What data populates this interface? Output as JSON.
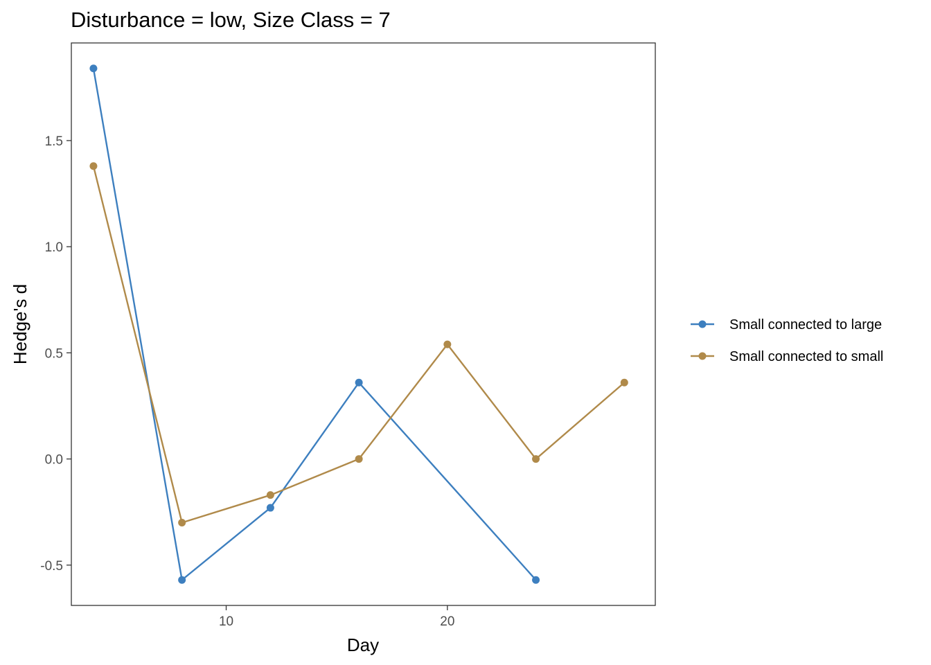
{
  "chart_data": {
    "type": "line",
    "title": "Disturbance = low, Size Class = 7",
    "xlabel": "Day",
    "ylabel": "Hedge's d",
    "xlim": [
      3.0,
      29.4
    ],
    "ylim": [
      -0.69,
      1.96
    ],
    "x_ticks": [
      10,
      20
    ],
    "x_tick_labels": [
      "10",
      "20"
    ],
    "y_ticks": [
      -0.5,
      0.0,
      0.5,
      1.0,
      1.5
    ],
    "y_tick_labels": [
      "-0.5",
      "0.0",
      "0.5",
      "1.0",
      "1.5"
    ],
    "grid": false,
    "legend_position": "right",
    "series": [
      {
        "name": "Small connected to large",
        "color": "#3d7fbf",
        "x": [
          4,
          8,
          12,
          16,
          24
        ],
        "y": [
          1.84,
          -0.57,
          -0.23,
          0.36,
          -0.57
        ]
      },
      {
        "name": "Small connected to small",
        "color": "#b08a4a",
        "x": [
          4,
          8,
          12,
          16,
          20,
          24,
          28
        ],
        "y": [
          1.38,
          -0.3,
          -0.17,
          0.0,
          0.54,
          0.0,
          0.36
        ]
      }
    ]
  }
}
